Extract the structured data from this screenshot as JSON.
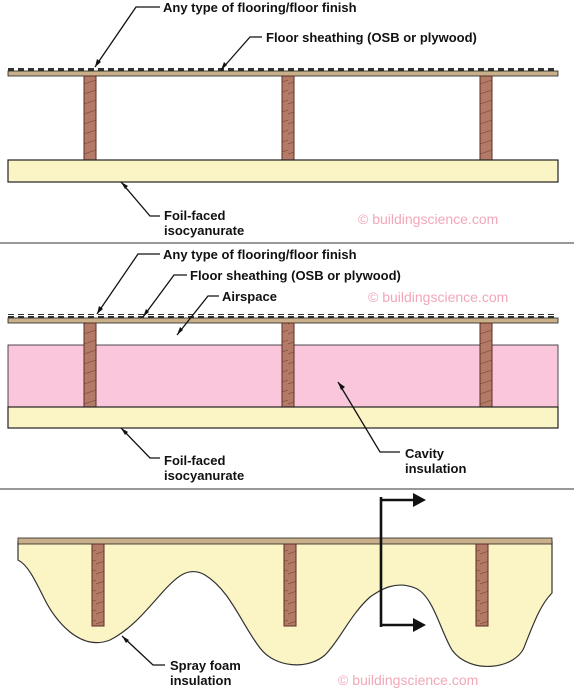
{
  "colors": {
    "joist": "#b47a68",
    "joist_stroke": "#5a2e24",
    "rigid_foam": "#fbf4c4",
    "cavity_insulation": "#f9c6dc",
    "spray_foam": "#fbf4c4",
    "sheathing": "#c9b08a",
    "outline": "#222222",
    "watermark": "#f2a7b8"
  },
  "panel1": {
    "flooring_label": "Any type of flooring/floor finish",
    "sheathing_label": "Floor sheathing (OSB or plywood)",
    "foil_label_line1": "Foil-faced",
    "foil_label_line2": "isocyanurate",
    "watermark": "© buildingscience.com"
  },
  "panel2": {
    "flooring_label": "Any type of flooring/floor finish",
    "sheathing_label": "Floor sheathing (OSB or plywood)",
    "airspace_label": "Airspace",
    "cavity_label_line1": "Cavity",
    "cavity_label_line2": "insulation",
    "foil_label_line1": "Foil-faced",
    "foil_label_line2": "isocyanurate",
    "watermark": "© buildingscience.com"
  },
  "panel3": {
    "spray_label_line1": "Spray foam",
    "spray_label_line2": "insulation",
    "watermark": "© buildingscience.com"
  }
}
